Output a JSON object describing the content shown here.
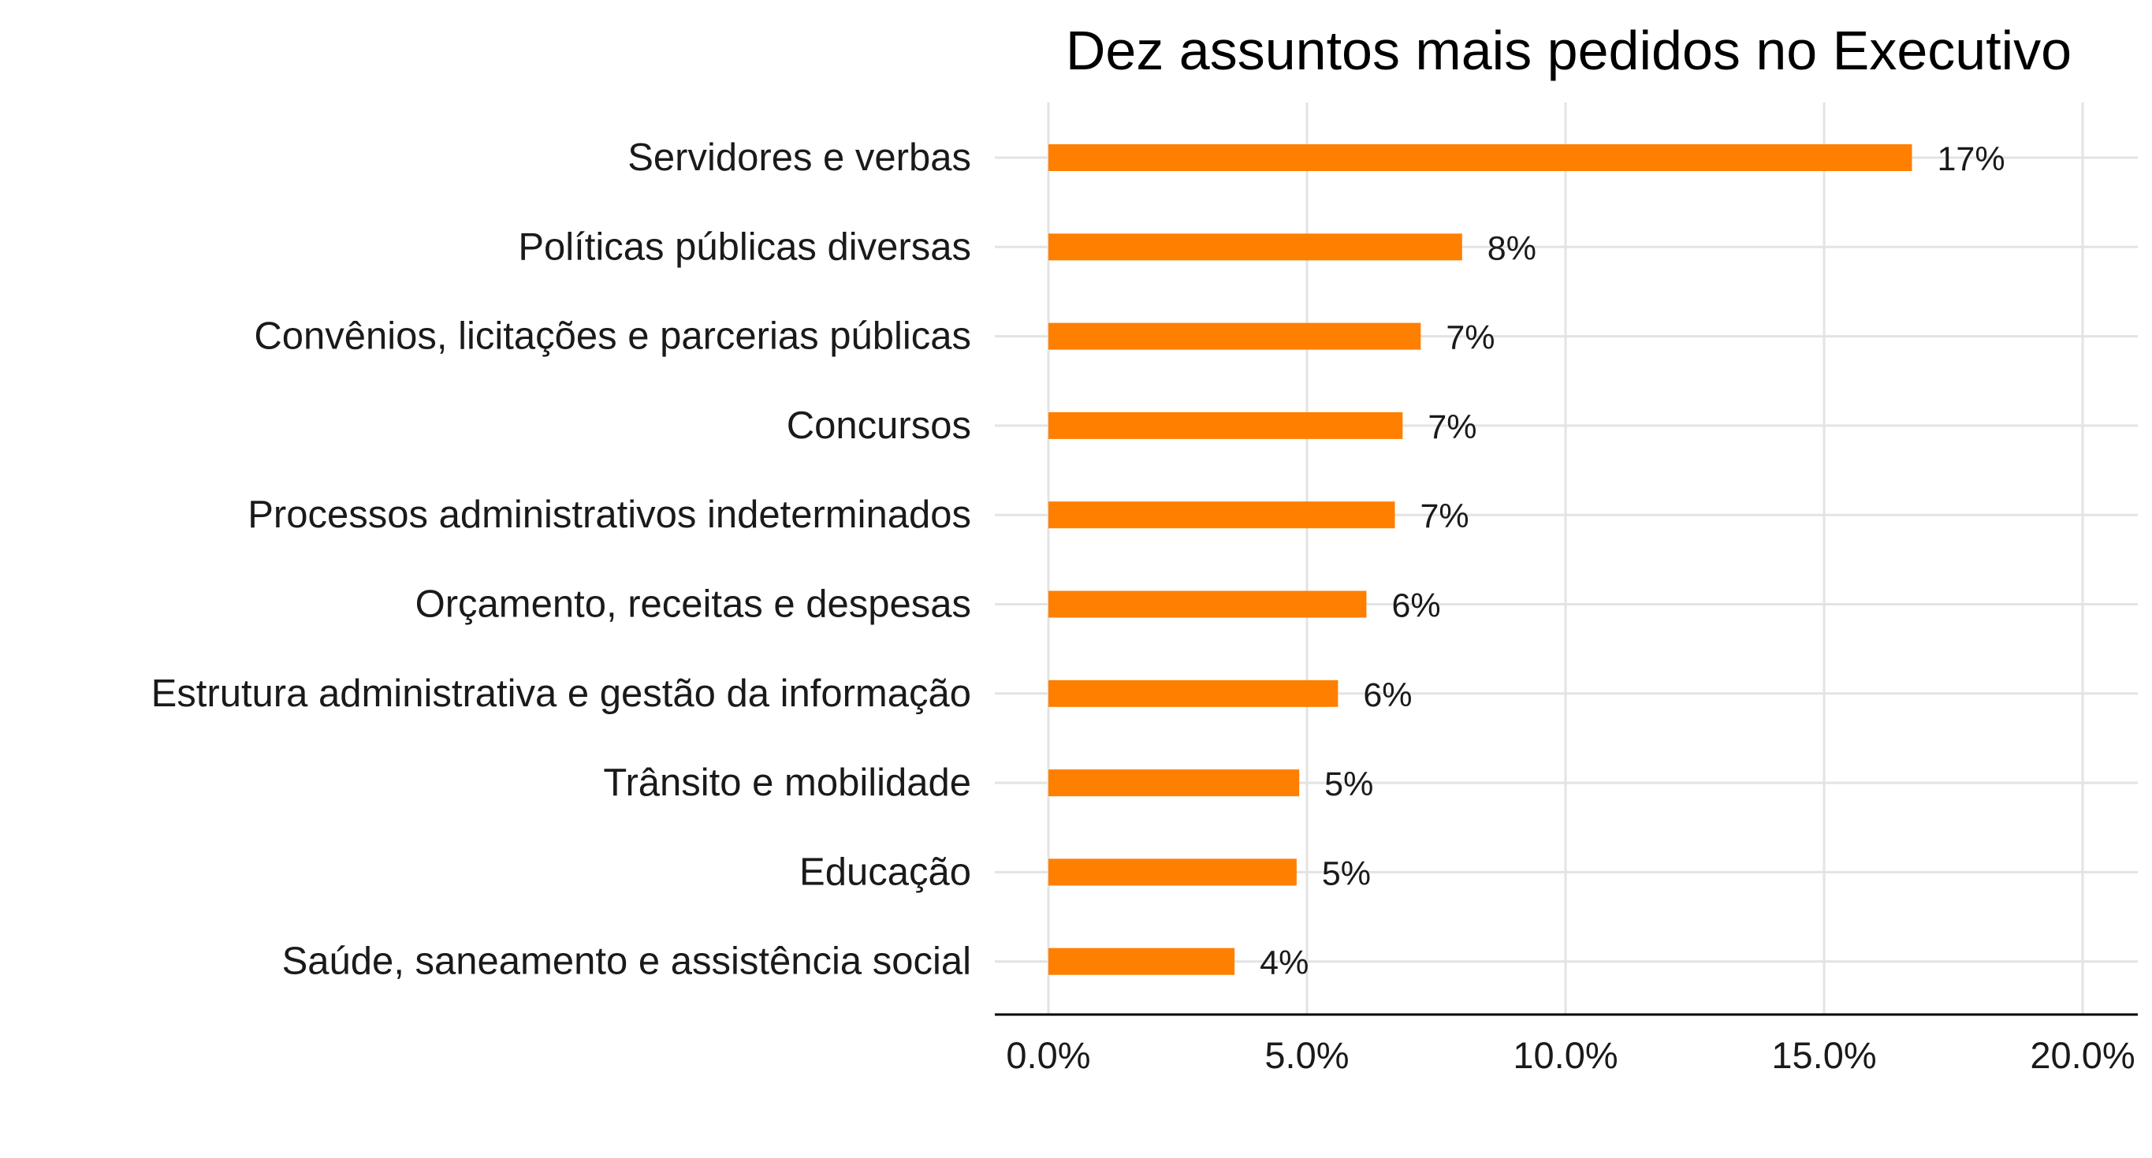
{
  "chart_data": {
    "type": "bar",
    "orientation": "horizontal",
    "title": "Dez assuntos mais pedidos no Executivo",
    "xlabel": "",
    "ylabel": "",
    "categories": [
      "Servidores e verbas",
      "Políticas públicas diversas",
      "Convênios, licitações e parcerias públicas",
      "Concursos",
      "Processos administrativos indeterminados",
      "Orçamento, receitas e despesas",
      "Estrutura administrativa e gestão da informação",
      "Trânsito e mobilidade",
      "Educação",
      "Saúde, saneamento e assistência social"
    ],
    "values": [
      16.7,
      8.0,
      7.2,
      6.85,
      6.7,
      6.15,
      5.6,
      4.85,
      4.8,
      3.6
    ],
    "data_labels": [
      "17%",
      "8%",
      "7%",
      "7%",
      "7%",
      "6%",
      "6%",
      "5%",
      "5%",
      "4%"
    ],
    "xlim": [
      0,
      20
    ],
    "x_ticks": [
      0,
      5,
      10,
      15,
      20
    ],
    "x_tick_labels": [
      "0.0%",
      "5.0%",
      "10.0%",
      "15.0%",
      "20.0%"
    ],
    "grid": true,
    "legend": "none",
    "colors": {
      "bar": "#FF7F00",
      "grid": "#E3E3E3",
      "axis": "#000000"
    }
  }
}
